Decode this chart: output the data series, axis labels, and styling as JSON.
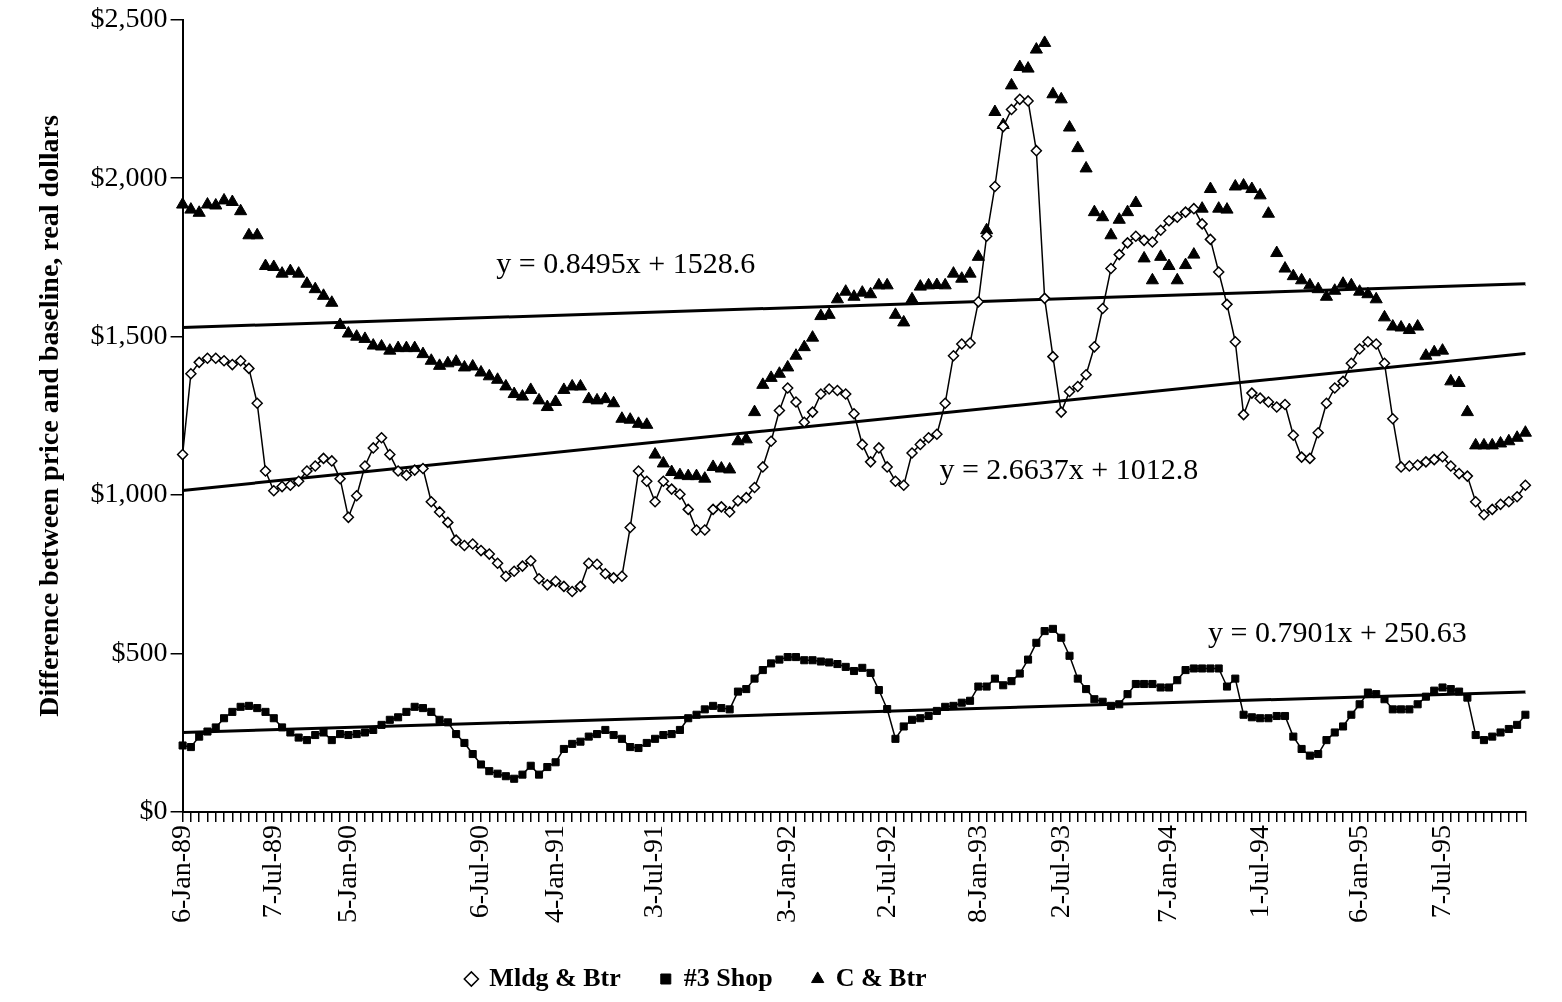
{
  "chart_data": {
    "type": "line",
    "ylabel": "Difference between price and baseline, real dollars",
    "categories": [
      "6-Jan-89",
      null,
      null,
      null,
      null,
      null,
      null,
      null,
      null,
      null,
      null,
      "7-Jul-89",
      null,
      null,
      null,
      null,
      null,
      null,
      null,
      null,
      "5-Jan-90",
      null,
      null,
      null,
      null,
      null,
      null,
      null,
      null,
      null,
      null,
      null,
      null,
      null,
      null,
      null,
      "6-Jul-90",
      null,
      null,
      null,
      null,
      null,
      null,
      null,
      null,
      "4-Jan-91",
      null,
      null,
      null,
      null,
      null,
      null,
      null,
      null,
      null,
      null,
      null,
      "3-Jul-91",
      null,
      null,
      null,
      null,
      null,
      null,
      null,
      null,
      null,
      null,
      null,
      null,
      null,
      null,
      null,
      "3-Jan-92",
      null,
      null,
      null,
      null,
      null,
      null,
      null,
      null,
      null,
      null,
      null,
      "2-Jul-92",
      null,
      null,
      null,
      null,
      null,
      null,
      null,
      null,
      null,
      null,
      "8-Jan-93",
      null,
      null,
      null,
      null,
      null,
      null,
      null,
      null,
      null,
      "2-Jul-93",
      null,
      null,
      null,
      null,
      null,
      null,
      null,
      null,
      null,
      null,
      null,
      null,
      "7-Jan-94",
      null,
      null,
      null,
      null,
      null,
      null,
      null,
      null,
      null,
      null,
      "1-Jul-94",
      null,
      null,
      null,
      null,
      null,
      null,
      null,
      null,
      null,
      null,
      null,
      "6-Jan-95",
      null,
      null,
      null,
      null,
      null,
      null,
      null,
      null,
      null,
      "7-Jul-95",
      null,
      null,
      null,
      null,
      null,
      null,
      null,
      null,
      null,
      null
    ],
    "series": [
      {
        "name": "Mldg & Btr",
        "type": "line",
        "marker": "diamond",
        "color": "#000000",
        "values": [
          1128,
          1383,
          1419,
          1432,
          1432,
          1424,
          1412,
          1424,
          1400,
          1290,
          1076,
          1014,
          1027,
          1031,
          1044,
          1076,
          1092,
          1116,
          1108,
          1052,
          930,
          998,
          1092,
          1149,
          1181,
          1128,
          1076,
          1063,
          1079,
          1084,
          979,
          947,
          914,
          858,
          841,
          846,
          825,
          814,
          785,
          744,
          760,
          776,
          793,
          736,
          717,
          728,
          712,
          696,
          712,
          785,
          782,
          752,
          739,
          744,
          898,
          1076,
          1044,
          979,
          1044,
          1019,
          1003,
          955,
          890,
          890,
          955,
          963,
          947,
          982,
          992,
          1024,
          1089,
          1170,
          1267,
          1338,
          1294,
          1230,
          1262,
          1319,
          1335,
          1330,
          1319,
          1257,
          1160,
          1105,
          1149,
          1089,
          1044,
          1031,
          1133,
          1160,
          1181,
          1192,
          1290,
          1440,
          1477,
          1480,
          1610,
          1817,
          1974,
          2163,
          2217,
          2249,
          2244,
          2087,
          1621,
          1437,
          1262,
          1327,
          1343,
          1380,
          1468,
          1589,
          1715,
          1759,
          1796,
          1817,
          1804,
          1799,
          1836,
          1866,
          1877,
          1893,
          1904,
          1856,
          1807,
          1704,
          1602,
          1484,
          1254,
          1322,
          1306,
          1294,
          1278,
          1286,
          1189,
          1120,
          1116,
          1197,
          1290,
          1338,
          1359,
          1416,
          1461,
          1484,
          1477,
          1416,
          1241,
          1089,
          1092,
          1095,
          1105,
          1112,
          1121,
          1092,
          1068,
          1060,
          979,
          938,
          955,
          971,
          979,
          995,
          1031
        ]
      },
      {
        "name": "#3 Shop",
        "type": "line",
        "marker": "square",
        "color": "#000000",
        "values": [
          210,
          205,
          238,
          254,
          267,
          296,
          316,
          332,
          335,
          328,
          316,
          296,
          267,
          251,
          235,
          227,
          243,
          251,
          227,
          246,
          243,
          246,
          251,
          259,
          275,
          291,
          299,
          316,
          332,
          328,
          316,
          291,
          283,
          246,
          218,
          183,
          150,
          129,
          121,
          113,
          105,
          118,
          146,
          118,
          142,
          157,
          199,
          215,
          222,
          238,
          246,
          259,
          243,
          231,
          205,
          202,
          218,
          231,
          243,
          246,
          259,
          296,
          307,
          324,
          335,
          328,
          324,
          380,
          388,
          421,
          448,
          469,
          481,
          489,
          489,
          479,
          479,
          475,
          472,
          467,
          458,
          445,
          455,
          439,
          385,
          325,
          231,
          270,
          291,
          296,
          303,
          319,
          332,
          335,
          345,
          351,
          396,
          396,
          421,
          400,
          413,
          437,
          481,
          534,
          571,
          578,
          550,
          493,
          421,
          388,
          356,
          348,
          335,
          340,
          372,
          404,
          404,
          404,
          393,
          393,
          416,
          448,
          453,
          453,
          453,
          453,
          396,
          421,
          307,
          299,
          296,
          296,
          303,
          303,
          238,
          199,
          178,
          183,
          227,
          251,
          270,
          307,
          340,
          377,
          372,
          356,
          324,
          324,
          324,
          340,
          364,
          383,
          393,
          388,
          380,
          361,
          243,
          227,
          238,
          251,
          262,
          275,
          307
        ]
      },
      {
        "name": "C & Btr",
        "type": "scatter",
        "marker": "triangle",
        "color": "#000000",
        "values": [
          1917,
          1901,
          1891,
          1917,
          1914,
          1930,
          1925,
          1896,
          1820,
          1820,
          1723,
          1720,
          1699,
          1707,
          1699,
          1667,
          1650,
          1629,
          1607,
          1537,
          1510,
          1500,
          1493,
          1472,
          1469,
          1456,
          1464,
          1464,
          1464,
          1445,
          1424,
          1408,
          1416,
          1421,
          1403,
          1406,
          1387,
          1375,
          1364,
          1343,
          1319,
          1311,
          1332,
          1299,
          1278,
          1294,
          1332,
          1343,
          1343,
          1303,
          1299,
          1303,
          1290,
          1241,
          1238,
          1225,
          1222,
          1128,
          1100,
          1073,
          1063,
          1060,
          1060,
          1052,
          1089,
          1084,
          1081,
          1170,
          1176,
          1262,
          1348,
          1370,
          1383,
          1403,
          1440,
          1467,
          1497,
          1565,
          1569,
          1618,
          1642,
          1626,
          1639,
          1634,
          1662,
          1662,
          1569,
          1545,
          1618,
          1658,
          1662,
          1663,
          1662,
          1699,
          1683,
          1699,
          1752,
          1836,
          2209,
          2168,
          2293,
          2351,
          2346,
          2406,
          2427,
          2265,
          2249,
          2160,
          2095,
          2031,
          1893,
          1877,
          1820,
          1869,
          1893,
          1922,
          1747,
          1678,
          1752,
          1723,
          1678,
          1726,
          1759,
          1904,
          1966,
          1904,
          1901,
          1974,
          1977,
          1966,
          1946,
          1888,
          1764,
          1715,
          1691,
          1678,
          1662,
          1650,
          1626,
          1645,
          1667,
          1662,
          1642,
          1634,
          1618,
          1561,
          1532,
          1529,
          1521,
          1532,
          1440,
          1451,
          1456,
          1359,
          1354,
          1262,
          1157,
          1157,
          1157,
          1163,
          1170,
          1181,
          1197
        ]
      },
      {
        "type": "line",
        "marker": "none",
        "color": "#000000",
        "values": [
          1529,
          null,
          null,
          null,
          null,
          null,
          null,
          null,
          null,
          null,
          null,
          null,
          null,
          null,
          null,
          null,
          null,
          null,
          null,
          null,
          null,
          null,
          null,
          null,
          null,
          null,
          null,
          null,
          null,
          null,
          null,
          null,
          null,
          null,
          null,
          null,
          null,
          null,
          null,
          null,
          null,
          null,
          null,
          null,
          null,
          null,
          null,
          null,
          null,
          null,
          null,
          null,
          null,
          null,
          null,
          null,
          null,
          null,
          null,
          null,
          null,
          null,
          null,
          null,
          null,
          null,
          null,
          null,
          null,
          null,
          null,
          null,
          null,
          null,
          null,
          null,
          null,
          null,
          null,
          null,
          null,
          null,
          null,
          null,
          null,
          null,
          null,
          null,
          null,
          null,
          null,
          null,
          null,
          null,
          null,
          null,
          null,
          null,
          null,
          null,
          null,
          null,
          null,
          null,
          null,
          null,
          null,
          null,
          null,
          null,
          null,
          null,
          null,
          null,
          null,
          null,
          null,
          null,
          null,
          null,
          null,
          null,
          null,
          null,
          null,
          null,
          null,
          null,
          null,
          null,
          null,
          null,
          null,
          null,
          null,
          null,
          null,
          null,
          null,
          null,
          null,
          null,
          null,
          null,
          null,
          null,
          null,
          null,
          null,
          null,
          null,
          null,
          null,
          null,
          null,
          null,
          null,
          null,
          null,
          null,
          null,
          null,
          1667
        ]
      },
      {
        "type": "line",
        "marker": "none",
        "color": "#000000",
        "values": [
          1015,
          null,
          null,
          null,
          null,
          null,
          null,
          null,
          null,
          null,
          null,
          null,
          null,
          null,
          null,
          null,
          null,
          null,
          null,
          null,
          null,
          null,
          null,
          null,
          null,
          null,
          null,
          null,
          null,
          null,
          null,
          null,
          null,
          null,
          null,
          null,
          null,
          null,
          null,
          null,
          null,
          null,
          null,
          null,
          null,
          null,
          null,
          null,
          null,
          null,
          null,
          null,
          null,
          null,
          null,
          null,
          null,
          null,
          null,
          null,
          null,
          null,
          null,
          null,
          null,
          null,
          null,
          null,
          null,
          null,
          null,
          null,
          null,
          null,
          null,
          null,
          null,
          null,
          null,
          null,
          null,
          null,
          null,
          null,
          null,
          null,
          null,
          null,
          null,
          null,
          null,
          null,
          null,
          null,
          null,
          null,
          null,
          null,
          null,
          null,
          null,
          null,
          null,
          null,
          null,
          null,
          null,
          null,
          null,
          null,
          null,
          null,
          null,
          null,
          null,
          null,
          null,
          null,
          null,
          null,
          null,
          null,
          null,
          null,
          null,
          null,
          null,
          null,
          null,
          null,
          null,
          null,
          null,
          null,
          null,
          null,
          null,
          null,
          null,
          null,
          null,
          null,
          null,
          null,
          null,
          null,
          null,
          null,
          null,
          null,
          null,
          null,
          null,
          null,
          null,
          null,
          null,
          null,
          null,
          null,
          null,
          null,
          1447
        ]
      },
      {
        "type": "line",
        "marker": "none",
        "color": "#000000",
        "values": [
          251,
          null,
          null,
          null,
          null,
          null,
          null,
          null,
          null,
          null,
          null,
          null,
          null,
          null,
          null,
          null,
          null,
          null,
          null,
          null,
          null,
          null,
          null,
          null,
          null,
          null,
          null,
          null,
          null,
          null,
          null,
          null,
          null,
          null,
          null,
          null,
          null,
          null,
          null,
          null,
          null,
          null,
          null,
          null,
          null,
          null,
          null,
          null,
          null,
          null,
          null,
          null,
          null,
          null,
          null,
          null,
          null,
          null,
          null,
          null,
          null,
          null,
          null,
          null,
          null,
          null,
          null,
          null,
          null,
          null,
          null,
          null,
          null,
          null,
          null,
          null,
          null,
          null,
          null,
          null,
          null,
          null,
          null,
          null,
          null,
          null,
          null,
          null,
          null,
          null,
          null,
          null,
          null,
          null,
          null,
          null,
          null,
          null,
          null,
          null,
          null,
          null,
          null,
          null,
          null,
          null,
          null,
          null,
          null,
          null,
          null,
          null,
          null,
          null,
          null,
          null,
          null,
          null,
          null,
          null,
          null,
          null,
          null,
          null,
          null,
          null,
          null,
          null,
          null,
          null,
          null,
          null,
          null,
          null,
          null,
          null,
          null,
          null,
          null,
          null,
          null,
          null,
          null,
          null,
          null,
          null,
          null,
          null,
          null,
          null,
          null,
          null,
          null,
          null,
          null,
          null,
          null,
          null,
          null,
          null,
          null,
          null,
          379
        ]
      }
    ],
    "ylim": [
      0,
      2500
    ],
    "yticks": [
      {
        "value": 0,
        "label": "$0"
      },
      {
        "value": 500,
        "label": "$500"
      },
      {
        "value": 1000,
        "label": "$1,000"
      },
      {
        "value": 1500,
        "label": "$1,500"
      },
      {
        "value": 2000,
        "label": "$2,000"
      },
      {
        "value": 2500,
        "label": "$2,500"
      }
    ],
    "grid": false,
    "legend": "bottom",
    "annotations": [
      "y = 0.8495x + 1528.6",
      "y = 2.6637x + 1012.8",
      "y = 0.7901x + 250.63"
    ]
  }
}
